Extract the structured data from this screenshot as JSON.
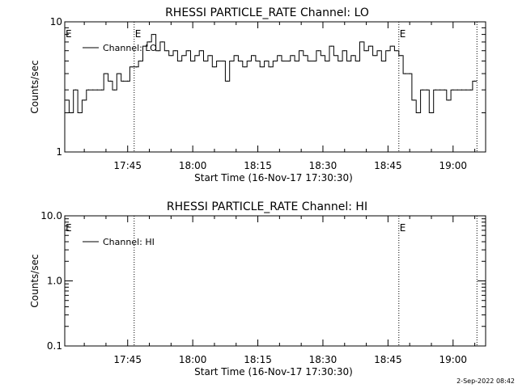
{
  "footer": {
    "timestamp": "2-Sep-2022 08:42"
  },
  "chart_data": [
    {
      "type": "line",
      "title": "RHESSI PARTICLE_RATE Channel: LO",
      "xlabel": "Start Time (16-Nov-17 17:30:30)",
      "ylabel": "Counts/sec",
      "yscale": "log",
      "ylim": [
        1,
        10
      ],
      "xlim": [
        "17:30:30",
        "19:07:30"
      ],
      "y_tick_labels": [
        {
          "value": 1,
          "label": "1"
        },
        {
          "value": 10,
          "label": "10"
        }
      ],
      "x_tick_labels": [
        "17:45",
        "18:00",
        "18:15",
        "18:30",
        "18:45",
        "19:00"
      ],
      "event_lines": [
        {
          "time": "17:46:30",
          "label": "E"
        },
        {
          "time": "18:47:30",
          "label": "E"
        },
        {
          "time": "19:05:30",
          "label": ""
        }
      ],
      "left_event_label": "E",
      "legend": {
        "position": "top-left",
        "entries": [
          "Channel: LO"
        ]
      },
      "grid": false,
      "series": [
        {
          "name": "Channel: LO",
          "x": [
            "17:31",
            "17:32",
            "17:33",
            "17:34",
            "17:35",
            "17:36",
            "17:37",
            "17:38",
            "17:39",
            "17:40",
            "17:41",
            "17:42",
            "17:43",
            "17:44",
            "17:45",
            "17:46",
            "17:47",
            "17:48",
            "17:49",
            "17:50",
            "17:51",
            "17:52",
            "17:53",
            "17:54",
            "17:55",
            "17:56",
            "17:57",
            "17:58",
            "17:59",
            "18:00",
            "18:01",
            "18:02",
            "18:03",
            "18:04",
            "18:05",
            "18:06",
            "18:07",
            "18:08",
            "18:09",
            "18:10",
            "18:11",
            "18:12",
            "18:13",
            "18:14",
            "18:15",
            "18:16",
            "18:17",
            "18:18",
            "18:19",
            "18:20",
            "18:21",
            "18:22",
            "18:23",
            "18:24",
            "18:25",
            "18:26",
            "18:27",
            "18:28",
            "18:29",
            "18:30",
            "18:31",
            "18:32",
            "18:33",
            "18:34",
            "18:35",
            "18:36",
            "18:37",
            "18:38",
            "18:39",
            "18:40",
            "18:41",
            "18:42",
            "18:43",
            "18:44",
            "18:45",
            "18:46",
            "18:47",
            "18:48",
            "18:49",
            "18:50",
            "18:51",
            "18:52",
            "18:53",
            "18:54",
            "18:55",
            "18:56",
            "18:57",
            "18:58",
            "18:59",
            "19:00",
            "19:01",
            "19:02",
            "19:03",
            "19:04",
            "19:05"
          ],
          "values": [
            2.5,
            2.0,
            3.0,
            2.0,
            2.5,
            3.0,
            3.0,
            3.0,
            3.0,
            4.0,
            3.5,
            3.0,
            4.0,
            3.5,
            3.5,
            4.5,
            4.5,
            5.0,
            6.5,
            7.0,
            8.0,
            6.0,
            7.0,
            6.0,
            5.5,
            6.0,
            5.0,
            5.5,
            6.0,
            5.0,
            5.5,
            6.0,
            5.0,
            5.5,
            4.5,
            5.0,
            5.0,
            3.5,
            5.0,
            5.5,
            5.0,
            4.5,
            5.0,
            5.5,
            5.0,
            4.5,
            5.0,
            4.5,
            5.0,
            5.5,
            5.0,
            5.0,
            5.5,
            5.0,
            6.0,
            5.5,
            5.0,
            5.0,
            6.0,
            5.5,
            5.0,
            6.5,
            5.5,
            5.0,
            6.0,
            5.0,
            5.5,
            5.0,
            7.0,
            6.0,
            6.5,
            5.5,
            6.0,
            5.0,
            6.0,
            6.5,
            6.0,
            5.5,
            4.0,
            4.0,
            2.5,
            2.0,
            3.0,
            3.0,
            2.0,
            3.0,
            3.0,
            3.0,
            2.5,
            3.0,
            3.0,
            3.0,
            3.0,
            3.0,
            3.5
          ]
        }
      ]
    },
    {
      "type": "line",
      "title": "RHESSI PARTICLE_RATE Channel: HI",
      "xlabel": "Start Time (16-Nov-17 17:30:30)",
      "ylabel": "Counts/sec",
      "yscale": "log",
      "ylim": [
        0.1,
        10
      ],
      "xlim": [
        "17:30:30",
        "19:07:30"
      ],
      "y_tick_labels": [
        {
          "value": 0.1,
          "label": "0.1"
        },
        {
          "value": 1,
          "label": "1.0"
        },
        {
          "value": 10,
          "label": "10.0"
        }
      ],
      "x_tick_labels": [
        "17:45",
        "18:00",
        "18:15",
        "18:30",
        "18:45",
        "19:00"
      ],
      "event_lines": [
        {
          "time": "17:46:30",
          "label": ""
        },
        {
          "time": "18:47:30",
          "label": "E"
        },
        {
          "time": "19:05:30",
          "label": ""
        }
      ],
      "left_event_label": "E",
      "legend": {
        "position": "top-left",
        "entries": [
          "Channel: HI"
        ]
      },
      "grid": false,
      "series": [
        {
          "name": "Channel: HI",
          "x": [],
          "values": []
        }
      ]
    }
  ]
}
